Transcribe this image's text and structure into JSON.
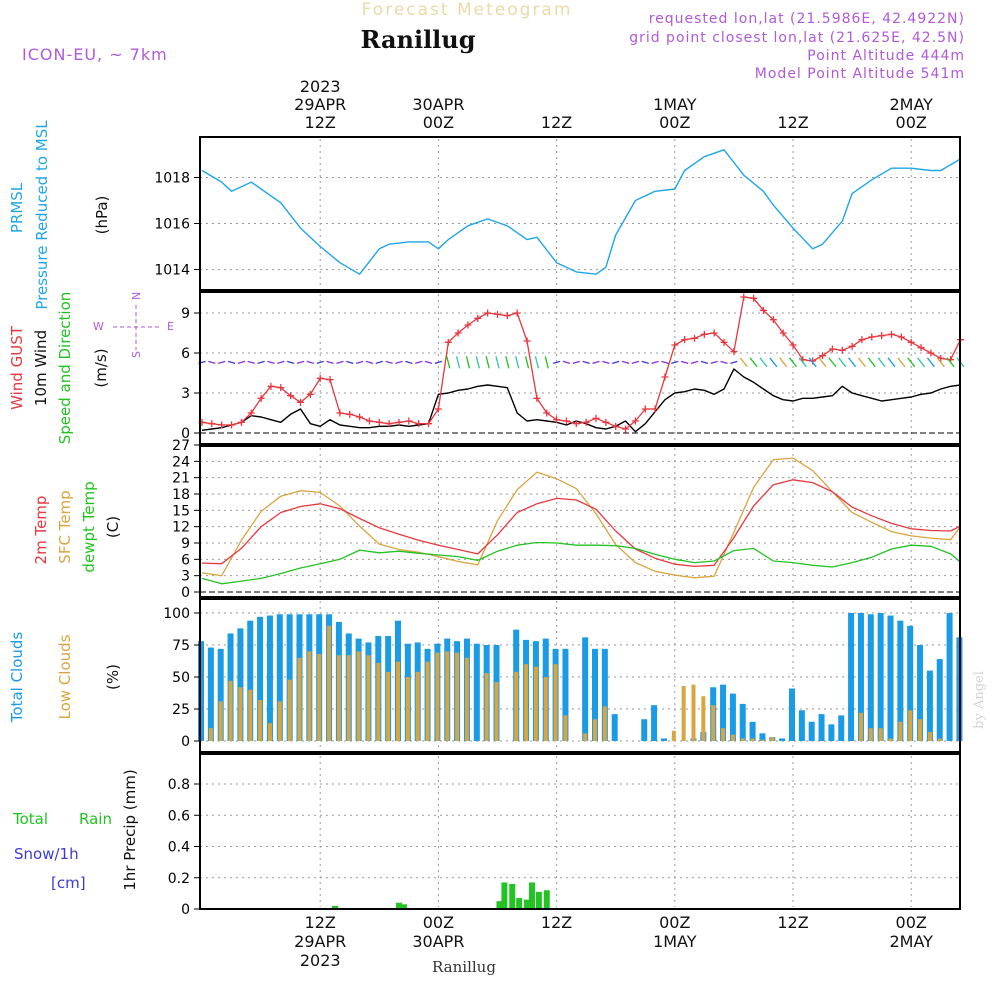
{
  "header": {
    "top_title": "Forecast Meteogram",
    "location": "Ranillug",
    "model": "ICON-EU, ~ 7km",
    "requested": "requested lon,lat (21.5986E, 42.4922N)",
    "grid_point": "grid point closest lon,lat (21.625E, 42.5N)",
    "point_altitude": "Point Altitude 444m",
    "model_altitude": "Model Point Altitude 541m"
  },
  "time_axis": {
    "top_labels": [
      {
        "hour": 12,
        "line1": "2023",
        "line2": "29APR",
        "line3": "12Z"
      },
      {
        "hour": 24,
        "line1": "",
        "line2": "30APR",
        "line3": "00Z"
      },
      {
        "hour": 36,
        "line1": "",
        "line2": "",
        "line3": "12Z"
      },
      {
        "hour": 48,
        "line1": "",
        "line2": "1MAY",
        "line3": "00Z"
      },
      {
        "hour": 60,
        "line1": "",
        "line2": "",
        "line3": "12Z"
      },
      {
        "hour": 72,
        "line1": "",
        "line2": "2MAY",
        "line3": "00Z"
      }
    ],
    "bottom_labels": [
      {
        "hour": 12,
        "line1": "12Z",
        "line2": "29APR",
        "line3": "2023"
      },
      {
        "hour": 24,
        "line1": "00Z",
        "line2": "30APR",
        "line3": ""
      },
      {
        "hour": 36,
        "line1": "12Z",
        "line2": "",
        "line3": ""
      },
      {
        "hour": 48,
        "line1": "00Z",
        "line2": "1MAY",
        "line3": ""
      },
      {
        "hour": 60,
        "line1": "12Z",
        "line2": "",
        "line3": ""
      },
      {
        "hour": 72,
        "line1": "00Z",
        "line2": "2MAY",
        "line3": ""
      }
    ],
    "bottom_location": "Ranillug",
    "credit": "by Angel"
  },
  "colors": {
    "pressure": "#1ea6e6",
    "gust": "#e8373f",
    "wind": "#000000",
    "temp": "#e8373f",
    "sfc": "#d9a540",
    "dewpt": "#22c322",
    "total_clouds": "#1a9be6",
    "low_clouds": "#d9a540",
    "rain": "#22c322",
    "snow": "#3a3ad9",
    "meta": "#b05ad8"
  },
  "panels": {
    "pressure": {
      "label1": "PRMSL",
      "label2": "Pressure Reduced to MSL",
      "unit": "(hPa)"
    },
    "wind": {
      "label1": "Wind GUST",
      "label2": "10m Wind",
      "label3": "Speed and Direction",
      "unit": "(m/s)",
      "compass": {
        "n": "N",
        "s": "S",
        "w": "W",
        "e": "E"
      }
    },
    "temp": {
      "label1": "2m Temp",
      "label2": "SFC Temp",
      "label3": "dewpt Temp",
      "unit": "(C)"
    },
    "clouds": {
      "label1": "Total Clouds",
      "label2": "Low Clouds",
      "unit": "(%)"
    },
    "precip": {
      "label1": "Total",
      "label2": "Rain",
      "label3": "Snow/1h",
      "label4": "[cm]",
      "unit": "1hr Precip (mm)"
    }
  },
  "chart_data": [
    {
      "type": "line",
      "title": "PRMSL Pressure Reduced to MSL",
      "ylabel": "(hPa)",
      "ylim": [
        1013.2,
        1019.8
      ],
      "yticks": [
        1014,
        1016,
        1018
      ],
      "x_hours": [
        0,
        2,
        3,
        5,
        6,
        8,
        10,
        12,
        14,
        16,
        18,
        19,
        21,
        23,
        24,
        25,
        27,
        29,
        31,
        33,
        34,
        36,
        38,
        40,
        41,
        42,
        44,
        46,
        48,
        49,
        51,
        53,
        55,
        57,
        58,
        60,
        62,
        63,
        65,
        66,
        68,
        70,
        72,
        74,
        75,
        77
      ],
      "series": [
        {
          "name": "PRMSL",
          "values": [
            1018.3,
            1017.8,
            1017.4,
            1017.8,
            1017.5,
            1016.9,
            1015.8,
            1015.0,
            1014.3,
            1013.8,
            1014.9,
            1015.1,
            1015.2,
            1015.2,
            1014.9,
            1015.3,
            1015.9,
            1016.2,
            1015.9,
            1015.3,
            1015.4,
            1014.3,
            1013.9,
            1013.8,
            1014.1,
            1015.5,
            1017.0,
            1017.4,
            1017.5,
            1018.3,
            1018.9,
            1019.2,
            1018.1,
            1017.4,
            1016.8,
            1015.8,
            1014.9,
            1015.1,
            1016.1,
            1017.3,
            1017.9,
            1018.4,
            1018.4,
            1018.3,
            1018.3,
            1018.8
          ]
        }
      ]
    },
    {
      "type": "line",
      "title": "Wind GUST / 10m Wind Speed and Direction",
      "ylabel": "(m/s)",
      "ylim": [
        0,
        10.5
      ],
      "yticks": [
        0,
        3,
        6,
        9
      ],
      "x_hours": [
        0,
        1,
        2,
        3,
        4,
        5,
        6,
        7,
        8,
        9,
        10,
        11,
        12,
        13,
        14,
        15,
        16,
        17,
        18,
        19,
        20,
        21,
        22,
        23,
        24,
        25,
        26,
        27,
        28,
        29,
        30,
        31,
        32,
        33,
        34,
        35,
        36,
        37,
        38,
        39,
        40,
        41,
        42,
        43,
        44,
        45,
        46,
        47,
        48,
        49,
        50,
        51,
        52,
        53,
        54,
        55,
        56,
        57,
        58,
        59,
        60,
        61,
        62,
        63,
        64,
        65,
        66,
        67,
        68,
        69,
        70,
        71,
        72,
        73,
        74,
        75,
        76,
        77
      ],
      "series": [
        {
          "name": "Wind GUST",
          "values": [
            0.8,
            0.7,
            0.6,
            0.6,
            0.8,
            1.5,
            2.6,
            3.5,
            3.4,
            2.8,
            2.3,
            2.9,
            4.1,
            4.0,
            1.5,
            1.4,
            1.2,
            0.9,
            0.8,
            0.7,
            0.8,
            0.9,
            0.7,
            0.7,
            1.8,
            6.8,
            7.5,
            8.1,
            8.6,
            9.0,
            8.9,
            8.8,
            9.0,
            6.9,
            2.6,
            1.5,
            1.0,
            0.9,
            0.7,
            0.8,
            1.1,
            0.8,
            0.5,
            0.3,
            0.9,
            1.8,
            1.8,
            4.2,
            6.6,
            7.0,
            7.1,
            7.4,
            7.5,
            6.8,
            6.1,
            10.2,
            10.1,
            9.2,
            8.5,
            7.5,
            6.6,
            5.5,
            5.4,
            5.8,
            6.3,
            6.2,
            6.5,
            7.0,
            7.2,
            7.3,
            7.4,
            7.2,
            6.8,
            6.4,
            6.0,
            5.6,
            5.5,
            7.0
          ]
        },
        {
          "name": "10m Wind",
          "values": [
            0.2,
            0.3,
            0.4,
            0.6,
            0.8,
            1.3,
            1.2,
            1.0,
            0.8,
            1.4,
            1.8,
            0.7,
            0.5,
            1.0,
            0.6,
            0.5,
            0.4,
            0.4,
            0.5,
            0.5,
            0.6,
            0.5,
            0.6,
            0.7,
            2.9,
            3.0,
            3.2,
            3.3,
            3.5,
            3.6,
            3.5,
            3.4,
            1.5,
            0.9,
            1.0,
            0.9,
            0.8,
            0.6,
            0.9,
            0.7,
            0.4,
            0.3,
            0.5,
            0.9,
            0.1,
            0.7,
            1.6,
            2.5,
            3.0,
            3.1,
            3.3,
            3.2,
            2.9,
            3.3,
            4.8,
            4.2,
            3.8,
            3.3,
            2.8,
            2.5,
            2.4,
            2.6,
            2.6,
            2.7,
            2.8,
            3.5,
            3.0,
            2.8,
            2.6,
            2.4,
            2.5,
            2.6,
            2.7,
            2.9,
            3.0,
            3.3,
            3.5,
            3.6
          ]
        }
      ]
    },
    {
      "type": "line",
      "title": "2m Temp / SFC Temp / dewpt Temp",
      "ylabel": "(C)",
      "ylim": [
        0,
        27
      ],
      "yticks": [
        0,
        3,
        6,
        9,
        12,
        15,
        18,
        21,
        24,
        27
      ],
      "x_hours": [
        0,
        2,
        4,
        6,
        8,
        10,
        12,
        14,
        16,
        18,
        20,
        22,
        24,
        26,
        28,
        30,
        32,
        34,
        36,
        38,
        40,
        42,
        44,
        46,
        48,
        50,
        52,
        54,
        56,
        58,
        60,
        62,
        64,
        66,
        68,
        70,
        72,
        74,
        76,
        77
      ],
      "series": [
        {
          "name": "2m Temp",
          "values": [
            5.3,
            5.2,
            8.0,
            12.0,
            14.6,
            15.7,
            16.2,
            15.3,
            13.5,
            11.8,
            10.6,
            9.5,
            8.6,
            7.8,
            7.0,
            10.5,
            14.6,
            16.2,
            17.2,
            16.9,
            15.2,
            11.2,
            7.9,
            6.2,
            5.1,
            4.7,
            4.9,
            10.0,
            15.8,
            19.7,
            20.6,
            20.1,
            18.4,
            15.6,
            14.0,
            12.6,
            11.6,
            11.3,
            11.2,
            12.1
          ]
        },
        {
          "name": "SFC Temp",
          "values": [
            3.5,
            3.0,
            9.5,
            14.8,
            17.6,
            18.6,
            18.3,
            15.8,
            12.1,
            8.8,
            7.8,
            7.3,
            6.5,
            5.6,
            5.0,
            13.1,
            18.8,
            22.0,
            20.8,
            19.0,
            14.4,
            8.7,
            5.4,
            3.8,
            3.1,
            2.6,
            2.9,
            11.0,
            19.2,
            24.3,
            24.6,
            22.3,
            18.4,
            14.6,
            12.8,
            11.1,
            10.3,
            9.9,
            9.6,
            12.0
          ]
        },
        {
          "name": "dewpt Temp",
          "values": [
            2.5,
            1.5,
            2.0,
            2.5,
            3.4,
            4.4,
            5.2,
            6.0,
            7.7,
            7.2,
            7.5,
            7.1,
            6.8,
            6.5,
            5.8,
            7.5,
            8.6,
            9.1,
            9.0,
            8.6,
            8.6,
            8.5,
            8.0,
            6.9,
            6.0,
            5.4,
            5.7,
            7.6,
            8.0,
            5.7,
            5.4,
            4.9,
            4.6,
            5.4,
            6.4,
            7.9,
            8.6,
            8.4,
            7.0,
            5.5
          ]
        }
      ]
    },
    {
      "type": "bar",
      "title": "Total Clouds / Low Clouds",
      "ylabel": "(%)",
      "ylim": [
        0,
        100
      ],
      "yticks": [
        0,
        25,
        50,
        75,
        100
      ],
      "x_hours": [
        0,
        1,
        2,
        3,
        4,
        5,
        6,
        7,
        8,
        9,
        10,
        11,
        12,
        13,
        14,
        15,
        16,
        17,
        18,
        19,
        20,
        21,
        22,
        23,
        24,
        25,
        26,
        27,
        28,
        29,
        30,
        31,
        32,
        33,
        34,
        35,
        36,
        37,
        38,
        39,
        40,
        41,
        42,
        43,
        44,
        45,
        46,
        47,
        48,
        49,
        50,
        51,
        52,
        53,
        54,
        55,
        56,
        57,
        58,
        59,
        60,
        61,
        62,
        63,
        64,
        65,
        66,
        67,
        68,
        69,
        70,
        71,
        72,
        73,
        74,
        75,
        76,
        77
      ],
      "series": [
        {
          "name": "Total Clouds",
          "values": [
            78,
            73,
            72,
            84,
            88,
            94,
            97,
            98,
            99,
            99,
            99,
            99,
            99,
            99,
            93,
            84,
            80,
            77,
            82,
            82,
            94,
            76,
            77,
            72,
            76,
            80,
            78,
            80,
            76,
            75,
            75,
            0,
            87,
            79,
            78,
            80,
            72,
            72,
            0,
            81,
            72,
            72,
            21,
            0,
            0,
            17,
            28,
            2,
            0,
            0,
            2,
            7,
            42,
            44,
            37,
            29,
            15,
            6,
            3,
            2,
            41,
            24,
            15,
            21,
            13,
            20,
            100,
            100,
            99,
            100,
            98,
            94,
            90,
            75,
            55,
            64,
            100,
            81
          ]
        },
        {
          "name": "Low Clouds",
          "values": [
            0,
            10,
            31,
            47,
            42,
            40,
            32,
            14,
            31,
            48,
            65,
            70,
            68,
            90,
            67,
            67,
            70,
            67,
            61,
            54,
            62,
            50,
            54,
            62,
            69,
            70,
            69,
            65,
            0,
            53,
            46,
            0,
            54,
            60,
            58,
            50,
            60,
            20,
            0,
            6,
            17,
            27,
            0,
            0,
            0,
            0,
            0,
            0,
            8,
            43,
            44,
            35,
            28,
            10,
            5,
            2,
            2,
            1,
            3,
            0,
            0,
            0,
            0,
            0,
            0,
            0,
            0,
            22,
            10,
            10,
            2,
            15,
            24,
            17,
            7,
            2,
            0,
            0
          ]
        }
      ]
    },
    {
      "type": "bar",
      "title": "1hr Precip",
      "ylabel": "1hr Precip (mm)",
      "ylim": [
        0,
        0.98
      ],
      "yticks": [
        0,
        0.2,
        0.4,
        0.6,
        0.8
      ],
      "series": [
        {
          "name": "Total Rain",
          "x_hours": [
            13.5,
            20,
            20.5,
            30.2,
            30.7,
            31.5,
            32.2,
            33,
            33.5,
            34.2,
            35,
            36
          ],
          "values": [
            0.02,
            0.04,
            0.03,
            0.05,
            0.17,
            0.16,
            0.07,
            0.06,
            0.17,
            0.11,
            0.12,
            0.0
          ]
        }
      ]
    }
  ]
}
